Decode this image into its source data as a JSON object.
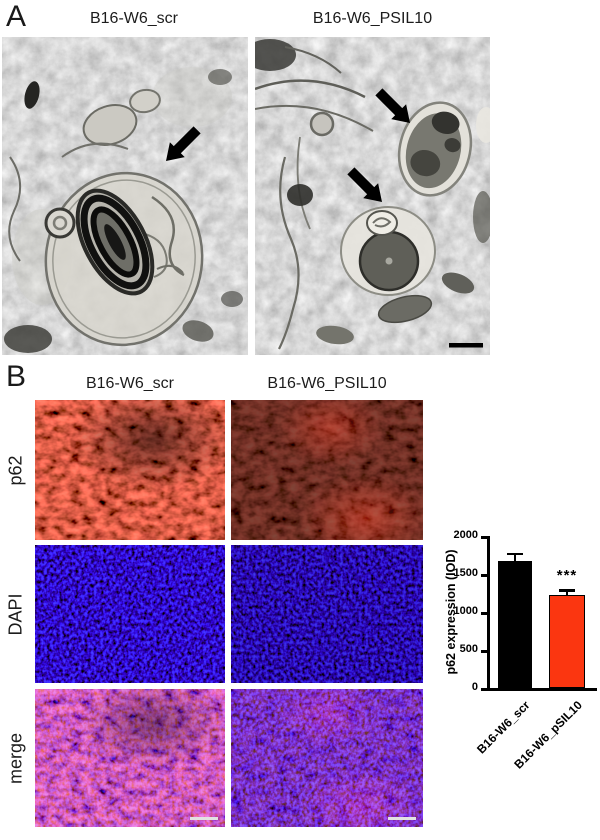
{
  "panel_a": {
    "label": "A",
    "col_titles": [
      "B16-W6_scr",
      "B16-W6_PSIL10"
    ]
  },
  "panel_b": {
    "label": "B",
    "col_titles": [
      "B16-W6_scr",
      "B16-W6_PSIL10"
    ],
    "row_labels": [
      "p62",
      "DAPI",
      "merge"
    ]
  },
  "chart_data": {
    "type": "bar",
    "categories": [
      "B16-W6_scr",
      "B16-W6_pSIL10"
    ],
    "values": [
      1670,
      1230
    ],
    "errors": [
      110,
      70
    ],
    "bar_colors": [
      "#000000",
      "#fb3610"
    ],
    "ylabel": "p62 expression (IOD)",
    "yticks": [
      0,
      500,
      1000,
      1500,
      2000
    ],
    "ylim": [
      0,
      2000
    ],
    "significance": {
      "label": "***",
      "bar_index": 1
    }
  }
}
